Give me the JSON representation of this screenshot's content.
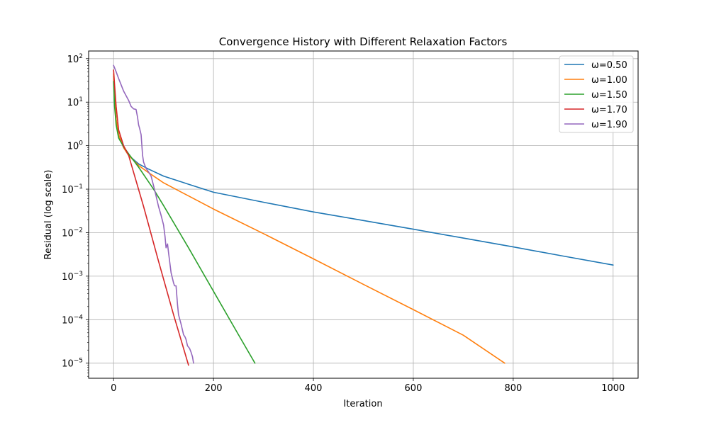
{
  "chart_data": {
    "type": "line",
    "title": "Convergence History with Different Relaxation Factors",
    "xlabel": "Iteration",
    "ylabel": "Residual (log scale)",
    "yscale": "log",
    "xlim": [
      -50,
      1050
    ],
    "ylim": [
      4.5e-06,
      150
    ],
    "xticks": [
      0,
      200,
      400,
      600,
      800,
      1000
    ],
    "yticks": [
      {
        "value": 1e-05,
        "base": "10",
        "exp": "−5"
      },
      {
        "value": 0.0001,
        "base": "10",
        "exp": "−4"
      },
      {
        "value": 0.001,
        "base": "10",
        "exp": "−3"
      },
      {
        "value": 0.01,
        "base": "10",
        "exp": "−2"
      },
      {
        "value": 0.1,
        "base": "10",
        "exp": "−1"
      },
      {
        "value": 1,
        "base": "10",
        "exp": "0"
      },
      {
        "value": 10,
        "base": "10",
        "exp": "1"
      },
      {
        "value": 100,
        "base": "10",
        "exp": "2"
      }
    ],
    "grid": true,
    "legend_position": "top-right",
    "series": [
      {
        "name": "ω=0.50",
        "color": "#1f77b4",
        "x": [
          0,
          2,
          5,
          10,
          20,
          30,
          50,
          70,
          100,
          150,
          200,
          300,
          400,
          500,
          600,
          700,
          800,
          900,
          1000
        ],
        "y": [
          40,
          12,
          4,
          1.8,
          0.9,
          0.6,
          0.38,
          0.29,
          0.2,
          0.13,
          0.085,
          0.05,
          0.03,
          0.019,
          0.012,
          0.0075,
          0.0047,
          0.0029,
          0.0018
        ]
      },
      {
        "name": "ω=1.00",
        "color": "#ff7f0e",
        "x": [
          0,
          2,
          5,
          10,
          20,
          30,
          50,
          70,
          100,
          150,
          200,
          300,
          400,
          500,
          600,
          700,
          783
        ],
        "y": [
          45,
          12,
          4,
          1.8,
          0.9,
          0.6,
          0.35,
          0.24,
          0.14,
          0.07,
          0.035,
          0.0095,
          0.0025,
          0.00065,
          0.00017,
          4.4e-05,
          1e-05
        ]
      },
      {
        "name": "ω=1.50",
        "color": "#2ca02c",
        "x": [
          0,
          2,
          5,
          10,
          20,
          30,
          50,
          80,
          100,
          150,
          200,
          250,
          283
        ],
        "y": [
          30,
          8,
          3,
          1.5,
          0.95,
          0.65,
          0.32,
          0.1,
          0.042,
          0.0045,
          0.00045,
          4.5e-05,
          1e-05
        ]
      },
      {
        "name": "ω=1.70",
        "color": "#d62728",
        "x": [
          0,
          2,
          5,
          10,
          20,
          30,
          60,
          90,
          120,
          150
        ],
        "y": [
          55,
          25,
          8,
          2.3,
          1,
          0.6,
          0.04,
          0.0022,
          0.00013,
          9e-06
        ]
      },
      {
        "name": "ω=1.90",
        "color": "#9467bd",
        "x": [
          0,
          5,
          10,
          20,
          30,
          35,
          40,
          45,
          48,
          50,
          52,
          55,
          58,
          60,
          65,
          70,
          75,
          80,
          85,
          90,
          95,
          100,
          103,
          105,
          108,
          110,
          115,
          120,
          122,
          125,
          128,
          130,
          135,
          140,
          143,
          145,
          148,
          152,
          155,
          158,
          160
        ],
        "y": [
          70,
          50,
          35,
          18,
          11,
          8,
          7,
          6.8,
          4.5,
          3,
          2.5,
          1.8,
          0.6,
          0.42,
          0.3,
          0.25,
          0.2,
          0.12,
          0.07,
          0.04,
          0.025,
          0.015,
          0.008,
          0.0045,
          0.0055,
          0.0035,
          0.0012,
          0.0007,
          0.0006,
          0.0006,
          0.00022,
          0.00013,
          8e-05,
          4.5e-05,
          4e-05,
          3.5e-05,
          2.5e-05,
          2.2e-05,
          1.8e-05,
          1.4e-05,
          1e-05
        ]
      }
    ]
  }
}
